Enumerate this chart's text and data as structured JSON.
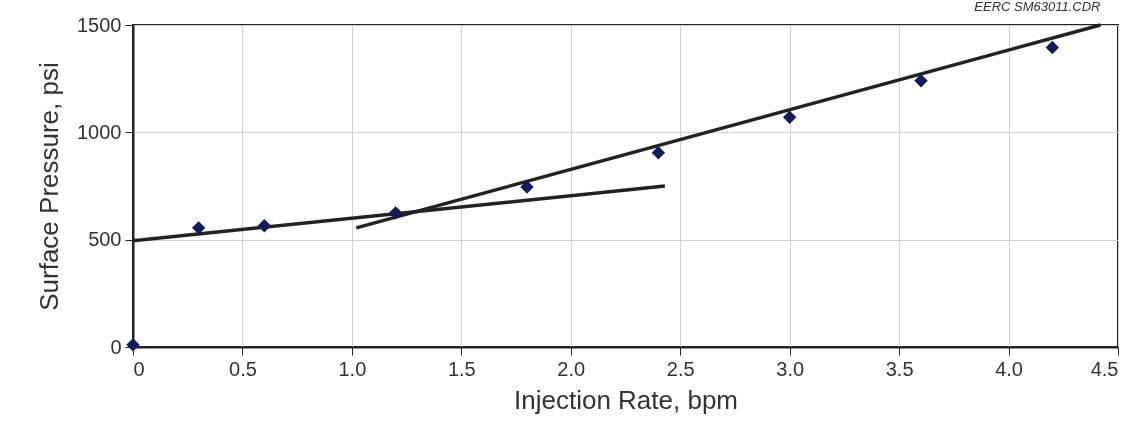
{
  "chart_data": {
    "type": "scatter",
    "xlabel": "Injection Rate, bpm",
    "ylabel": "Surface Pressure, psi",
    "annotations": [
      "EERC SM63011.CDR"
    ],
    "xlim": [
      0,
      4.5
    ],
    "xticks": [
      0,
      0.5,
      {
        "value": 1,
        "label": "1.0"
      },
      1.5,
      {
        "value": 2,
        "label": "2.0"
      },
      2.5,
      {
        "value": 3,
        "label": "3.0"
      },
      3.5,
      {
        "value": 4,
        "label": "4.0"
      },
      4.5
    ],
    "ylim": [
      0,
      1500
    ],
    "yticks": [
      0,
      500,
      1000,
      1500
    ],
    "grid": true,
    "line_style": "solid",
    "series": [
      {
        "marker": "diamond",
        "color": "#141a5e",
        "x": [
          0,
          0.3,
          0.6,
          1.2,
          1.8,
          2.4,
          3.0,
          3.6,
          4.2
        ],
        "values": [
          10,
          555,
          565,
          625,
          745,
          905,
          1070,
          1240,
          1395
        ]
      },
      {
        "type": "line",
        "color": "#222222",
        "x": [
          0,
          2.43
        ],
        "values": [
          495,
          750
        ]
      },
      {
        "type": "line",
        "color": "#222222",
        "x": [
          1.02,
          4.42
        ],
        "values": [
          555,
          1500
        ]
      }
    ]
  }
}
